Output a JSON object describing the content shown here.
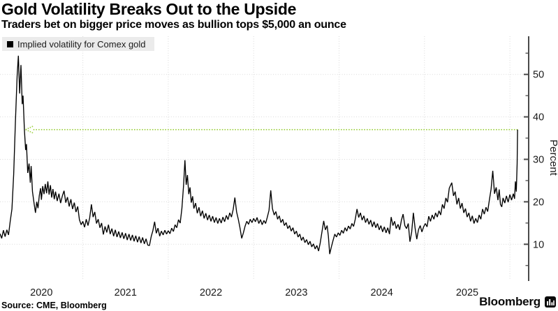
{
  "header": {
    "title": "Gold Volatility Breaks Out to the Upside",
    "subtitle": "Traders bet on bigger price moves as bullion tops $5,000 an ounce"
  },
  "legend": {
    "label": "Implied volatility for Comex gold",
    "swatch_color": "#000000"
  },
  "source": {
    "text": "Source: CME, Bloomberg"
  },
  "branding": {
    "name": "Bloomberg"
  },
  "colors": {
    "line": "#000000",
    "grid": "#d9d9d9",
    "axis": "#4a4a4a",
    "annotation_green": "#a2d24a",
    "legend_bg": "#ebebeb"
  },
  "chart_data": {
    "type": "line",
    "title": "Gold Volatility Breaks Out to the Upside",
    "series_name": "Implied volatility for Comex gold",
    "ylabel": "Percent",
    "ylim": [
      1.84,
      58.98
    ],
    "xlim": [
      2020.03,
      2026.22
    ],
    "yticks": [
      10,
      20,
      30,
      40,
      50
    ],
    "yticks_minor": [
      5,
      15,
      25,
      35,
      45,
      55
    ],
    "x_gridlines": [
      2021,
      2022,
      2023,
      2024,
      2025,
      2026
    ],
    "xtick_labels": [
      "2020",
      "2021",
      "2022",
      "2023",
      "2024",
      "2025"
    ],
    "grid": true,
    "legend_position": "top-left",
    "annotation": {
      "type": "dotted-arrow-left",
      "value": 37.0,
      "x_tip": 2020.33,
      "x_end": 2026.09,
      "color": "#a2d24a"
    },
    "points": [
      [
        2020.03,
        12.5
      ],
      [
        2020.05,
        11.4
      ],
      [
        2020.07,
        13.3
      ],
      [
        2020.09,
        11.8
      ],
      [
        2020.11,
        13.4
      ],
      [
        2020.13,
        12.2
      ],
      [
        2020.15,
        15.5
      ],
      [
        2020.17,
        18.3
      ],
      [
        2020.19,
        26.5
      ],
      [
        2020.21,
        38.5
      ],
      [
        2020.23,
        49.5
      ],
      [
        2020.245,
        54.4
      ],
      [
        2020.26,
        45.5
      ],
      [
        2020.275,
        52.2
      ],
      [
        2020.29,
        43.0
      ],
      [
        2020.3,
        45.0
      ],
      [
        2020.315,
        37.1
      ],
      [
        2020.33,
        32.2
      ],
      [
        2020.34,
        33.6
      ],
      [
        2020.355,
        26.8
      ],
      [
        2020.37,
        29.0
      ],
      [
        2020.385,
        24.5
      ],
      [
        2020.395,
        28.4
      ],
      [
        2020.41,
        22.4
      ],
      [
        2020.43,
        19.5
      ],
      [
        2020.445,
        17.4
      ],
      [
        2020.46,
        20.0
      ],
      [
        2020.475,
        18.5
      ],
      [
        2020.49,
        21.5
      ],
      [
        2020.505,
        23.2
      ],
      [
        2020.515,
        20.5
      ],
      [
        2020.53,
        23.7
      ],
      [
        2020.545,
        21.8
      ],
      [
        2020.56,
        24.2
      ],
      [
        2020.575,
        22.0
      ],
      [
        2020.59,
        24.8
      ],
      [
        2020.605,
        21.7
      ],
      [
        2020.62,
        23.9
      ],
      [
        2020.635,
        21.0
      ],
      [
        2020.65,
        23.0
      ],
      [
        2020.665,
        20.6
      ],
      [
        2020.68,
        22.4
      ],
      [
        2020.7,
        20.2
      ],
      [
        2020.72,
        21.9
      ],
      [
        2020.74,
        19.7
      ],
      [
        2020.76,
        21.4
      ],
      [
        2020.78,
        22.6
      ],
      [
        2020.8,
        19.8
      ],
      [
        2020.82,
        21.1
      ],
      [
        2020.84,
        18.9
      ],
      [
        2020.86,
        20.6
      ],
      [
        2020.88,
        18.3
      ],
      [
        2020.9,
        19.8
      ],
      [
        2020.92,
        17.6
      ],
      [
        2020.94,
        18.9
      ],
      [
        2020.96,
        15.8
      ],
      [
        2020.98,
        14.6
      ],
      [
        2021.0,
        15.4
      ],
      [
        2021.02,
        14.0
      ],
      [
        2021.04,
        15.9
      ],
      [
        2021.06,
        14.4
      ],
      [
        2021.08,
        16.2
      ],
      [
        2021.1,
        19.4
      ],
      [
        2021.12,
        16.4
      ],
      [
        2021.14,
        17.6
      ],
      [
        2021.16,
        14.9
      ],
      [
        2021.18,
        15.9
      ],
      [
        2021.2,
        13.9
      ],
      [
        2021.22,
        15.0
      ],
      [
        2021.24,
        12.3
      ],
      [
        2021.26,
        14.2
      ],
      [
        2021.28,
        12.8
      ],
      [
        2021.3,
        14.6
      ],
      [
        2021.32,
        12.4
      ],
      [
        2021.34,
        13.7
      ],
      [
        2021.36,
        11.9
      ],
      [
        2021.38,
        13.4
      ],
      [
        2021.4,
        11.7
      ],
      [
        2021.42,
        13.0
      ],
      [
        2021.44,
        11.5
      ],
      [
        2021.46,
        12.8
      ],
      [
        2021.48,
        11.3
      ],
      [
        2021.5,
        12.6
      ],
      [
        2021.52,
        11.0
      ],
      [
        2021.54,
        12.4
      ],
      [
        2021.56,
        10.9
      ],
      [
        2021.58,
        12.2
      ],
      [
        2021.6,
        10.7
      ],
      [
        2021.62,
        12.0
      ],
      [
        2021.64,
        10.5
      ],
      [
        2021.66,
        11.8
      ],
      [
        2021.68,
        10.3
      ],
      [
        2021.7,
        11.6
      ],
      [
        2021.72,
        10.1
      ],
      [
        2021.74,
        11.3
      ],
      [
        2021.76,
        9.8
      ],
      [
        2021.78,
        9.7
      ],
      [
        2021.8,
        11.8
      ],
      [
        2021.82,
        13.2
      ],
      [
        2021.84,
        15.3
      ],
      [
        2021.86,
        12.6
      ],
      [
        2021.88,
        13.8
      ],
      [
        2021.9,
        11.9
      ],
      [
        2021.92,
        13.1
      ],
      [
        2021.94,
        12.2
      ],
      [
        2021.96,
        13.3
      ],
      [
        2021.98,
        12.4
      ],
      [
        2022.0,
        13.2
      ],
      [
        2022.02,
        12.5
      ],
      [
        2022.04,
        13.8
      ],
      [
        2022.06,
        13.0
      ],
      [
        2022.08,
        14.6
      ],
      [
        2022.1,
        13.9
      ],
      [
        2022.12,
        15.8
      ],
      [
        2022.14,
        15.0
      ],
      [
        2022.16,
        18.5
      ],
      [
        2022.18,
        24.0
      ],
      [
        2022.195,
        29.8
      ],
      [
        2022.21,
        24.0
      ],
      [
        2022.225,
        26.3
      ],
      [
        2022.24,
        21.8
      ],
      [
        2022.255,
        23.4
      ],
      [
        2022.27,
        19.8
      ],
      [
        2022.285,
        21.3
      ],
      [
        2022.3,
        18.4
      ],
      [
        2022.32,
        19.7
      ],
      [
        2022.34,
        17.3
      ],
      [
        2022.36,
        18.7
      ],
      [
        2022.38,
        16.6
      ],
      [
        2022.4,
        17.9
      ],
      [
        2022.42,
        16.1
      ],
      [
        2022.44,
        17.3
      ],
      [
        2022.46,
        15.7
      ],
      [
        2022.48,
        16.9
      ],
      [
        2022.5,
        15.4
      ],
      [
        2022.52,
        16.6
      ],
      [
        2022.54,
        15.1
      ],
      [
        2022.56,
        16.3
      ],
      [
        2022.58,
        14.9
      ],
      [
        2022.6,
        16.1
      ],
      [
        2022.62,
        15.0
      ],
      [
        2022.64,
        16.4
      ],
      [
        2022.66,
        15.3
      ],
      [
        2022.68,
        16.8
      ],
      [
        2022.7,
        15.8
      ],
      [
        2022.72,
        17.4
      ],
      [
        2022.74,
        16.4
      ],
      [
        2022.76,
        18.2
      ],
      [
        2022.78,
        21.0
      ],
      [
        2022.8,
        17.6
      ],
      [
        2022.82,
        15.9
      ],
      [
        2022.84,
        13.9
      ],
      [
        2022.86,
        11.4
      ],
      [
        2022.88,
        12.7
      ],
      [
        2022.9,
        14.3
      ],
      [
        2022.92,
        15.4
      ],
      [
        2022.94,
        14.7
      ],
      [
        2022.96,
        15.9
      ],
      [
        2022.98,
        15.1
      ],
      [
        2023.0,
        16.1
      ],
      [
        2023.02,
        15.3
      ],
      [
        2023.04,
        16.3
      ],
      [
        2023.06,
        14.9
      ],
      [
        2023.08,
        15.8
      ],
      [
        2023.1,
        14.6
      ],
      [
        2023.12,
        15.6
      ],
      [
        2023.14,
        14.9
      ],
      [
        2023.16,
        16.4
      ],
      [
        2023.18,
        18.0
      ],
      [
        2023.2,
        22.7
      ],
      [
        2023.22,
        18.4
      ],
      [
        2023.24,
        16.9
      ],
      [
        2023.26,
        17.7
      ],
      [
        2023.28,
        15.9
      ],
      [
        2023.3,
        16.7
      ],
      [
        2023.32,
        15.1
      ],
      [
        2023.34,
        15.9
      ],
      [
        2023.36,
        14.4
      ],
      [
        2023.38,
        15.1
      ],
      [
        2023.4,
        13.7
      ],
      [
        2023.42,
        14.4
      ],
      [
        2023.44,
        13.1
      ],
      [
        2023.46,
        13.9
      ],
      [
        2023.48,
        12.4
      ],
      [
        2023.5,
        13.1
      ],
      [
        2023.52,
        11.7
      ],
      [
        2023.54,
        12.4
      ],
      [
        2023.56,
        10.9
      ],
      [
        2023.58,
        11.7
      ],
      [
        2023.6,
        10.4
      ],
      [
        2023.62,
        11.1
      ],
      [
        2023.64,
        9.9
      ],
      [
        2023.66,
        10.7
      ],
      [
        2023.68,
        9.4
      ],
      [
        2023.7,
        10.1
      ],
      [
        2023.72,
        8.9
      ],
      [
        2023.74,
        9.7
      ],
      [
        2023.76,
        8.4
      ],
      [
        2023.78,
        10.4
      ],
      [
        2023.8,
        12.9
      ],
      [
        2023.82,
        15.5
      ],
      [
        2023.84,
        13.4
      ],
      [
        2023.86,
        14.4
      ],
      [
        2023.875,
        11.9
      ],
      [
        2023.89,
        7.7
      ],
      [
        2023.91,
        9.4
      ],
      [
        2023.93,
        10.9
      ],
      [
        2023.95,
        12.4
      ],
      [
        2023.97,
        11.7
      ],
      [
        2023.99,
        12.7
      ],
      [
        2024.01,
        12.1
      ],
      [
        2024.03,
        13.3
      ],
      [
        2024.05,
        12.6
      ],
      [
        2024.07,
        13.9
      ],
      [
        2024.09,
        13.1
      ],
      [
        2024.11,
        14.3
      ],
      [
        2024.13,
        13.6
      ],
      [
        2024.15,
        14.9
      ],
      [
        2024.17,
        14.2
      ],
      [
        2024.19,
        15.9
      ],
      [
        2024.21,
        18.3
      ],
      [
        2024.23,
        16.3
      ],
      [
        2024.25,
        17.4
      ],
      [
        2024.27,
        15.7
      ],
      [
        2024.29,
        16.7
      ],
      [
        2024.31,
        15.1
      ],
      [
        2024.33,
        16.1
      ],
      [
        2024.35,
        14.7
      ],
      [
        2024.37,
        15.7
      ],
      [
        2024.39,
        14.1
      ],
      [
        2024.41,
        15.3
      ],
      [
        2024.43,
        13.9
      ],
      [
        2024.45,
        14.9
      ],
      [
        2024.47,
        13.4
      ],
      [
        2024.49,
        14.4
      ],
      [
        2024.51,
        12.9
      ],
      [
        2024.53,
        14.1
      ],
      [
        2024.55,
        12.7
      ],
      [
        2024.57,
        13.9
      ],
      [
        2024.59,
        12.4
      ],
      [
        2024.61,
        16.4
      ],
      [
        2024.63,
        14.4
      ],
      [
        2024.65,
        15.4
      ],
      [
        2024.67,
        13.7
      ],
      [
        2024.69,
        14.7
      ],
      [
        2024.71,
        13.4
      ],
      [
        2024.73,
        15.7
      ],
      [
        2024.75,
        17.1
      ],
      [
        2024.77,
        14.4
      ],
      [
        2024.79,
        13.7
      ],
      [
        2024.81,
        14.9
      ],
      [
        2024.83,
        10.6
      ],
      [
        2024.85,
        12.9
      ],
      [
        2024.87,
        17.4
      ],
      [
        2024.89,
        13.9
      ],
      [
        2024.91,
        11.2
      ],
      [
        2024.93,
        13.4
      ],
      [
        2024.95,
        14.4
      ],
      [
        2024.97,
        12.9
      ],
      [
        2024.99,
        14.1
      ],
      [
        2025.01,
        14.9
      ],
      [
        2025.03,
        14.1
      ],
      [
        2025.05,
        16.6
      ],
      [
        2025.07,
        15.4
      ],
      [
        2025.09,
        16.9
      ],
      [
        2025.11,
        15.9
      ],
      [
        2025.13,
        17.4
      ],
      [
        2025.15,
        16.4
      ],
      [
        2025.17,
        17.9
      ],
      [
        2025.19,
        16.9
      ],
      [
        2025.21,
        19.4
      ],
      [
        2025.23,
        18.4
      ],
      [
        2025.25,
        20.9
      ],
      [
        2025.27,
        19.9
      ],
      [
        2025.29,
        23.2
      ],
      [
        2025.32,
        24.5
      ],
      [
        2025.34,
        21.4
      ],
      [
        2025.36,
        22.4
      ],
      [
        2025.38,
        19.4
      ],
      [
        2025.4,
        20.9
      ],
      [
        2025.42,
        18.4
      ],
      [
        2025.44,
        19.7
      ],
      [
        2025.46,
        17.4
      ],
      [
        2025.48,
        18.4
      ],
      [
        2025.5,
        16.4
      ],
      [
        2025.52,
        17.4
      ],
      [
        2025.54,
        15.4
      ],
      [
        2025.56,
        16.7
      ],
      [
        2025.58,
        14.9
      ],
      [
        2025.6,
        16.1
      ],
      [
        2025.62,
        15.1
      ],
      [
        2025.64,
        16.9
      ],
      [
        2025.66,
        15.9
      ],
      [
        2025.68,
        18.3
      ],
      [
        2025.7,
        17.1
      ],
      [
        2025.72,
        18.7
      ],
      [
        2025.74,
        17.7
      ],
      [
        2025.76,
        20.4
      ],
      [
        2025.78,
        23.0
      ],
      [
        2025.8,
        27.3
      ],
      [
        2025.82,
        21.9
      ],
      [
        2025.84,
        23.4
      ],
      [
        2025.86,
        20.4
      ],
      [
        2025.875,
        22.9
      ],
      [
        2025.89,
        19.4
      ],
      [
        2025.905,
        18.8
      ],
      [
        2025.92,
        20.9
      ],
      [
        2025.94,
        19.7
      ],
      [
        2025.96,
        21.4
      ],
      [
        2025.98,
        19.9
      ],
      [
        2026.0,
        21.7
      ],
      [
        2026.02,
        20.4
      ],
      [
        2026.04,
        21.9
      ],
      [
        2026.055,
        20.7
      ],
      [
        2026.065,
        24.8
      ],
      [
        2026.075,
        22.4
      ],
      [
        2026.085,
        29.0
      ],
      [
        2026.09,
        37.0
      ]
    ]
  }
}
